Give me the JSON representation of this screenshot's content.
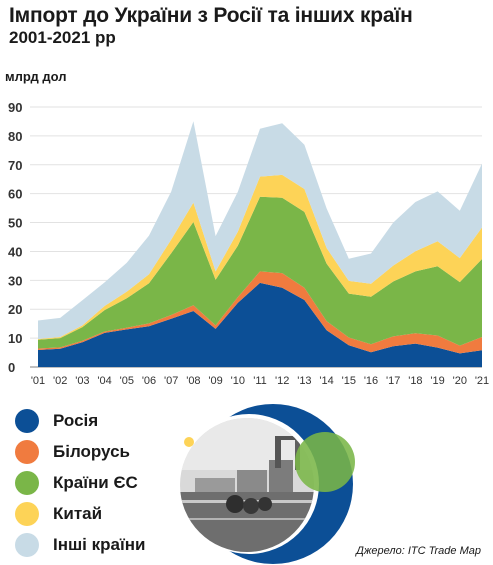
{
  "header": {
    "title": "Імпорт до України з Росії та інших країн",
    "subtitle": "2001-2021 рр",
    "unit_label": "млрд дол"
  },
  "chart_data": {
    "type": "area",
    "stacked": true,
    "title": "Імпорт до України з Росії та інших країн",
    "subtitle": "2001-2021 рр",
    "ylabel": "млрд дол",
    "xlabel": "",
    "ylim": [
      0,
      90
    ],
    "yticks": [
      "0",
      "10",
      "20",
      "30",
      "40",
      "50",
      "60",
      "70",
      "80",
      "90"
    ],
    "categories": [
      "'01",
      "'02",
      "'03",
      "'04",
      "'05",
      "'06",
      "'07",
      "'08",
      "'09",
      "'10",
      "'11",
      "'12",
      "'13",
      "'14",
      "'15",
      "'16",
      "'17",
      "'18",
      "'19",
      "'20",
      "'21"
    ],
    "grid": true,
    "series": [
      {
        "name": "Росія",
        "color": "#0c4f96",
        "values": [
          5.9,
          6.3,
          8.6,
          11.8,
          13.0,
          14.1,
          16.7,
          19.4,
          13.2,
          22.2,
          29.1,
          27.4,
          23.2,
          12.7,
          7.5,
          5.1,
          7.2,
          8.1,
          6.7,
          4.7,
          5.8
        ]
      },
      {
        "name": "Білорусь",
        "color": "#f07b3f",
        "values": [
          0.5,
          0.5,
          0.5,
          0.5,
          0.6,
          1.0,
          1.3,
          2.0,
          1.2,
          2.0,
          4.0,
          5.1,
          4.2,
          3.2,
          2.7,
          2.8,
          3.4,
          3.6,
          4.2,
          2.7,
          4.6
        ]
      },
      {
        "name": "Країни ЄС",
        "color": "#7ab648",
        "values": [
          3.0,
          3.2,
          4.7,
          7.4,
          10.2,
          13.9,
          21.4,
          28.8,
          15.8,
          17.8,
          25.8,
          26.1,
          26.3,
          19.9,
          15.2,
          16.4,
          19.0,
          21.4,
          24.0,
          22.0,
          27.0
        ]
      },
      {
        "name": "Китай",
        "color": "#fdd357",
        "values": [
          0.3,
          0.4,
          0.6,
          1.4,
          2.3,
          3.1,
          4.7,
          6.7,
          2.9,
          4.8,
          7.0,
          7.9,
          7.9,
          5.4,
          4.4,
          4.5,
          5.5,
          7.0,
          8.6,
          8.3,
          10.9
        ]
      },
      {
        "name": "Інші країни",
        "color": "#c8dbe6",
        "values": [
          6.4,
          6.6,
          8.7,
          8.2,
          10.0,
          13.4,
          16.6,
          28.2,
          12.2,
          13.8,
          16.6,
          17.9,
          15.3,
          13.7,
          7.7,
          10.5,
          14.9,
          17.0,
          17.3,
          16.4,
          22.1
        ]
      }
    ]
  },
  "legend": [
    {
      "label": "Росія",
      "color": "#0c4f96"
    },
    {
      "label": "Білорусь",
      "color": "#f07b3f"
    },
    {
      "label": "Країни ЄС",
      "color": "#7ab648"
    },
    {
      "label": "Китай",
      "color": "#fdd357"
    },
    {
      "label": "Інші країни",
      "color": "#c8dbe6"
    }
  ],
  "footer": {
    "source": "Джерело: ITC Trade Map"
  }
}
